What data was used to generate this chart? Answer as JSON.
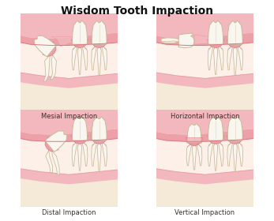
{
  "title": "Wisdom Tooth Impaction",
  "title_fontsize": 10,
  "labels": [
    "Mesial Impaction",
    "Horizontal Impaction",
    "Distal Impaction",
    "Vertical Impaction"
  ],
  "label_fontsize": 6,
  "bg_color": "#ffffff",
  "panel_bg": "#fdf0e8",
  "gum_pink_light": "#f2b8be",
  "gum_pink_mid": "#eda0a8",
  "gum_pink_dark": "#d97880",
  "bone_cream": "#f5ead8",
  "tooth_white": "#f8f6ee",
  "tooth_shadow": "#e8e0cc",
  "tooth_outline": "#c8b89a",
  "border_color": "#cccccc",
  "text_color": "#333333"
}
